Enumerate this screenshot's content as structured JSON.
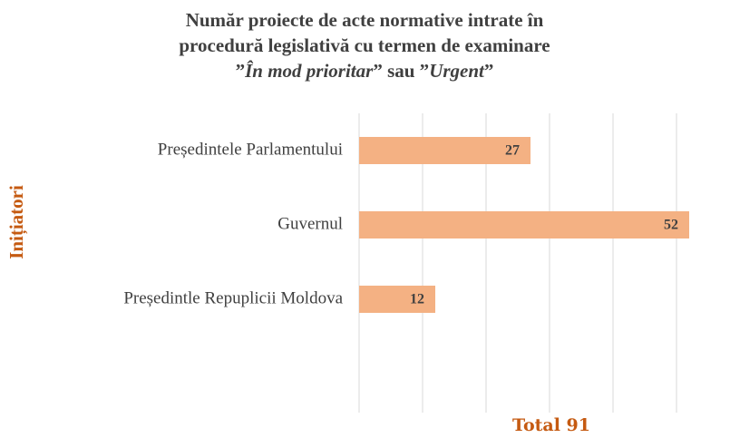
{
  "chart_data": {
    "type": "barh",
    "title_lines": [
      "Număr proiecte de acte normative intrate în",
      "procedură legislativă cu termen de examinare"
    ],
    "title_last_line": [
      "”",
      "În mod prioritar",
      "” sau ”",
      "Urgent",
      "”"
    ],
    "y_label": "Inițiatori",
    "x_label": "Total 91",
    "categories": [
      "Președintele Parlamentului",
      "Guvernul",
      "Președintle Repuplicii Moldova"
    ],
    "values": [
      27,
      52,
      12
    ],
    "color": "#f4b183",
    "xlim": [
      0,
      55
    ],
    "xticks": [
      0,
      10,
      20,
      30,
      40,
      50
    ],
    "grid": true
  }
}
